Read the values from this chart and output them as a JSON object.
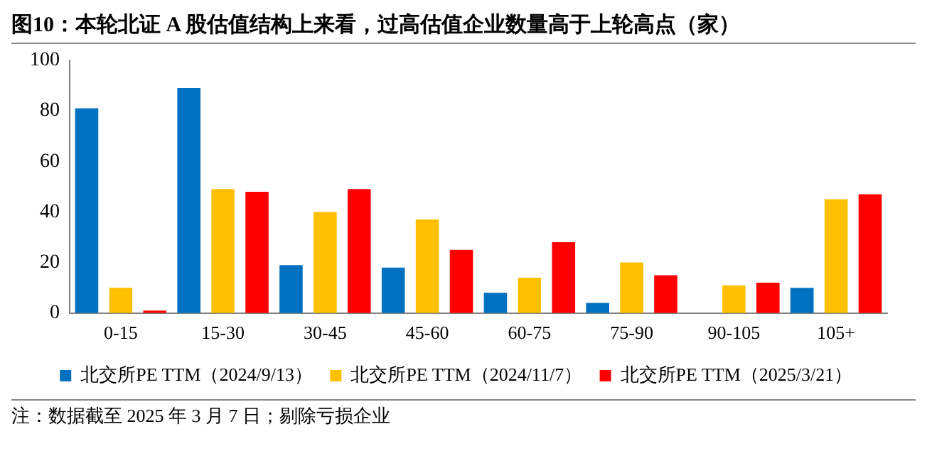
{
  "chart_data": {
    "type": "bar",
    "title": "图10：本轮北证 A 股估值结构上来看，过高估值企业数量高于上轮高点（家）",
    "categories": [
      "0-15",
      "15-30",
      "30-45",
      "45-60",
      "60-75",
      "75-90",
      "90-105",
      "105+"
    ],
    "series": [
      {
        "name": "北交所PE TTM（2024/9/13）",
        "color": "#0070c0",
        "values": [
          81,
          89,
          19,
          18,
          8,
          4,
          0,
          10
        ]
      },
      {
        "name": "北交所PE TTM（2024/11/7）",
        "color": "#ffc000",
        "values": [
          10,
          49,
          40,
          37,
          14,
          20,
          11,
          45
        ]
      },
      {
        "name": "北交所PE TTM（2025/3/21）",
        "color": "#ff0000",
        "values": [
          1,
          48,
          49,
          25,
          28,
          15,
          12,
          47
        ]
      }
    ],
    "ylim": [
      0,
      100
    ],
    "yticks": [
      0,
      20,
      40,
      60,
      80,
      100
    ],
    "grid": false,
    "legend": "bottom",
    "annotations": [
      "注：数据截至 2025 年 3 月 7 日；剔除亏损企业"
    ]
  }
}
